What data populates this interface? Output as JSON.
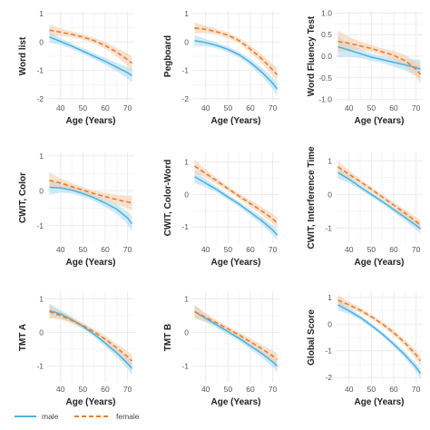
{
  "colors": {
    "male": "#4eb3e0",
    "male_band": "#a9d8ef",
    "female": "#e87f2a",
    "female_band": "#f5c9a6",
    "grid": "#ebebeb"
  },
  "legend": {
    "position": "bottom",
    "items": [
      {
        "label": "male",
        "series": "male"
      },
      {
        "label": "female",
        "series": "female"
      }
    ]
  },
  "chart_data": [
    {
      "type": "line",
      "xlabel": "Age (Years)",
      "ylabel": "Word list",
      "xlim": [
        34,
        73
      ],
      "ylim": [
        -2.1,
        1.1
      ],
      "xticks": [
        40,
        50,
        60,
        70
      ],
      "yticks": [
        -2,
        -1,
        0,
        1
      ],
      "grid": true,
      "x": [
        35,
        40,
        45,
        50,
        55,
        60,
        65,
        70,
        72
      ],
      "series": [
        {
          "name": "male",
          "values": [
            0.18,
            0.02,
            -0.14,
            -0.32,
            -0.5,
            -0.68,
            -0.88,
            -1.08,
            -1.18
          ],
          "ci": [
            0.2,
            0.12,
            0.1,
            0.1,
            0.1,
            0.12,
            0.15,
            0.2,
            0.25
          ]
        },
        {
          "name": "female",
          "values": [
            0.42,
            0.35,
            0.27,
            0.18,
            0.05,
            -0.12,
            -0.35,
            -0.62,
            -0.75
          ],
          "ci": [
            0.2,
            0.13,
            0.1,
            0.1,
            0.1,
            0.12,
            0.15,
            0.22,
            0.26
          ]
        }
      ]
    },
    {
      "type": "line",
      "xlabel": "Age (Years)",
      "ylabel": "Pegboard",
      "xlim": [
        34,
        73
      ],
      "ylim": [
        -2.1,
        1.1
      ],
      "xticks": [
        40,
        50,
        60,
        70
      ],
      "yticks": [
        -2,
        -1,
        0,
        1
      ],
      "grid": true,
      "x": [
        35,
        40,
        45,
        50,
        55,
        60,
        65,
        70,
        72
      ],
      "series": [
        {
          "name": "male",
          "values": [
            0.05,
            -0.02,
            -0.12,
            -0.26,
            -0.45,
            -0.72,
            -1.05,
            -1.45,
            -1.65
          ],
          "ci": [
            0.2,
            0.12,
            0.1,
            0.1,
            0.1,
            0.12,
            0.15,
            0.2,
            0.25
          ]
        },
        {
          "name": "female",
          "values": [
            0.5,
            0.45,
            0.36,
            0.24,
            0.05,
            -0.25,
            -0.58,
            -0.98,
            -1.15
          ],
          "ci": [
            0.2,
            0.13,
            0.1,
            0.1,
            0.1,
            0.12,
            0.15,
            0.2,
            0.25
          ]
        }
      ]
    },
    {
      "type": "line",
      "xlabel": "Age (Years)",
      "ylabel": "Word Fluency Test",
      "xlim": [
        34,
        73
      ],
      "ylim": [
        -1.05,
        1.05
      ],
      "xticks": [
        40,
        50,
        60,
        70
      ],
      "yticks": [
        -1.0,
        -0.5,
        0.0,
        0.5,
        1.0
      ],
      "ytick_labels": [
        "-1.0",
        "-0.5",
        "0.0",
        "0.5",
        "1.0"
      ],
      "grid": true,
      "x": [
        35,
        40,
        45,
        50,
        55,
        60,
        65,
        70,
        72
      ],
      "series": [
        {
          "name": "male",
          "values": [
            0.22,
            0.14,
            0.06,
            -0.02,
            -0.08,
            -0.14,
            -0.2,
            -0.26,
            -0.3
          ],
          "ci": [
            0.25,
            0.15,
            0.1,
            0.08,
            0.08,
            0.1,
            0.13,
            0.18,
            0.22
          ]
        },
        {
          "name": "female",
          "values": [
            0.34,
            0.3,
            0.24,
            0.18,
            0.1,
            0.02,
            -0.1,
            -0.3,
            -0.42
          ],
          "ci": [
            0.25,
            0.15,
            0.1,
            0.08,
            0.08,
            0.1,
            0.13,
            0.18,
            0.22
          ]
        }
      ]
    },
    {
      "type": "line",
      "xlabel": "Age (Years)",
      "ylabel": "CWIT, Color",
      "xlim": [
        34,
        73
      ],
      "ylim": [
        -1.5,
        1.1
      ],
      "xticks": [
        40,
        50,
        60,
        70
      ],
      "yticks": [
        -1,
        0,
        1
      ],
      "grid": true,
      "x": [
        35,
        40,
        45,
        50,
        55,
        60,
        65,
        70,
        72
      ],
      "series": [
        {
          "name": "male",
          "values": [
            0.1,
            0.08,
            0.02,
            -0.08,
            -0.2,
            -0.35,
            -0.52,
            -0.78,
            -0.95
          ],
          "ci": [
            0.22,
            0.13,
            0.1,
            0.09,
            0.09,
            0.11,
            0.14,
            0.18,
            0.22
          ]
        },
        {
          "name": "female",
          "values": [
            0.3,
            0.22,
            0.12,
            0.02,
            -0.08,
            -0.17,
            -0.25,
            -0.32,
            -0.35
          ],
          "ci": [
            0.22,
            0.13,
            0.1,
            0.09,
            0.09,
            0.11,
            0.14,
            0.18,
            0.22
          ]
        }
      ]
    },
    {
      "type": "line",
      "xlabel": "Age (Years)",
      "ylabel": "CWIT, Color-Word",
      "xlim": [
        34,
        73
      ],
      "ylim": [
        -1.5,
        1.3
      ],
      "xticks": [
        40,
        50,
        60,
        70
      ],
      "yticks": [
        -1,
        0,
        1
      ],
      "grid": true,
      "x": [
        35,
        40,
        45,
        50,
        55,
        60,
        65,
        70,
        72
      ],
      "series": [
        {
          "name": "male",
          "values": [
            0.55,
            0.35,
            0.15,
            -0.08,
            -0.3,
            -0.55,
            -0.8,
            -1.1,
            -1.25
          ],
          "ci": [
            0.2,
            0.12,
            0.09,
            0.08,
            0.08,
            0.1,
            0.12,
            0.15,
            0.18
          ]
        },
        {
          "name": "female",
          "values": [
            0.88,
            0.65,
            0.42,
            0.18,
            -0.05,
            -0.28,
            -0.5,
            -0.75,
            -0.88
          ],
          "ci": [
            0.2,
            0.12,
            0.09,
            0.08,
            0.08,
            0.1,
            0.12,
            0.15,
            0.18
          ]
        }
      ]
    },
    {
      "type": "line",
      "xlabel": "Age (Years)",
      "ylabel": "CWIT, Interference Time",
      "xlim": [
        34,
        73
      ],
      "ylim": [
        -1.45,
        1.25
      ],
      "xticks": [
        40,
        50,
        60,
        70
      ],
      "yticks": [
        -1,
        0,
        1
      ],
      "grid": true,
      "x": [
        35,
        40,
        45,
        50,
        55,
        60,
        65,
        70,
        72
      ],
      "series": [
        {
          "name": "male",
          "values": [
            0.65,
            0.45,
            0.22,
            0.0,
            -0.22,
            -0.45,
            -0.68,
            -0.92,
            -1.02
          ],
          "ci": [
            0.18,
            0.11,
            0.08,
            0.07,
            0.07,
            0.08,
            0.1,
            0.13,
            0.15
          ]
        },
        {
          "name": "female",
          "values": [
            0.82,
            0.6,
            0.38,
            0.15,
            -0.08,
            -0.32,
            -0.55,
            -0.8,
            -0.92
          ],
          "ci": [
            0.18,
            0.11,
            0.08,
            0.07,
            0.07,
            0.08,
            0.1,
            0.13,
            0.15
          ]
        }
      ]
    },
    {
      "type": "line",
      "xlabel": "Age (Years)",
      "ylabel": "TMT A",
      "xlim": [
        34,
        73
      ],
      "ylim": [
        -1.5,
        1.2
      ],
      "xticks": [
        40,
        50,
        60,
        70
      ],
      "yticks": [
        -1,
        0,
        1
      ],
      "grid": true,
      "x": [
        35,
        40,
        45,
        50,
        55,
        60,
        65,
        70,
        72
      ],
      "series": [
        {
          "name": "male",
          "values": [
            0.65,
            0.55,
            0.38,
            0.18,
            -0.05,
            -0.32,
            -0.6,
            -0.92,
            -1.08
          ],
          "ci": [
            0.2,
            0.12,
            0.09,
            0.08,
            0.08,
            0.1,
            0.12,
            0.16,
            0.2
          ]
        },
        {
          "name": "female",
          "values": [
            0.62,
            0.5,
            0.36,
            0.2,
            0.02,
            -0.2,
            -0.45,
            -0.72,
            -0.85
          ],
          "ci": [
            0.2,
            0.12,
            0.09,
            0.08,
            0.08,
            0.1,
            0.12,
            0.16,
            0.2
          ]
        }
      ]
    },
    {
      "type": "line",
      "xlabel": "Age (Years)",
      "ylabel": "TMT B",
      "xlim": [
        34,
        73
      ],
      "ylim": [
        -1.5,
        1.2
      ],
      "xticks": [
        40,
        50,
        60,
        70
      ],
      "yticks": [
        -1,
        0,
        1
      ],
      "grid": true,
      "x": [
        35,
        40,
        45,
        50,
        55,
        60,
        65,
        70,
        72
      ],
      "series": [
        {
          "name": "male",
          "values": [
            0.62,
            0.42,
            0.22,
            0.02,
            -0.18,
            -0.4,
            -0.62,
            -0.88,
            -1.0
          ],
          "ci": [
            0.2,
            0.12,
            0.09,
            0.08,
            0.08,
            0.1,
            0.12,
            0.15,
            0.18
          ]
        },
        {
          "name": "female",
          "values": [
            0.62,
            0.45,
            0.28,
            0.1,
            -0.08,
            -0.28,
            -0.48,
            -0.7,
            -0.8
          ],
          "ci": [
            0.2,
            0.12,
            0.09,
            0.08,
            0.08,
            0.1,
            0.12,
            0.15,
            0.18
          ]
        }
      ]
    },
    {
      "type": "line",
      "xlabel": "Age (Years)",
      "ylabel": "Global Score",
      "xlim": [
        34,
        73
      ],
      "ylim": [
        -2.2,
        1.2
      ],
      "xticks": [
        40,
        50,
        60,
        70
      ],
      "yticks": [
        -2,
        -1,
        0,
        1
      ],
      "grid": true,
      "x": [
        35,
        40,
        45,
        50,
        55,
        60,
        65,
        70,
        72
      ],
      "series": [
        {
          "name": "male",
          "values": [
            0.72,
            0.5,
            0.25,
            -0.05,
            -0.38,
            -0.75,
            -1.15,
            -1.62,
            -1.85
          ],
          "ci": [
            0.2,
            0.12,
            0.09,
            0.08,
            0.08,
            0.1,
            0.12,
            0.16,
            0.2
          ]
        },
        {
          "name": "female",
          "values": [
            0.9,
            0.72,
            0.52,
            0.28,
            0.0,
            -0.32,
            -0.7,
            -1.15,
            -1.38
          ],
          "ci": [
            0.2,
            0.12,
            0.09,
            0.08,
            0.08,
            0.1,
            0.12,
            0.16,
            0.2
          ]
        }
      ]
    }
  ]
}
